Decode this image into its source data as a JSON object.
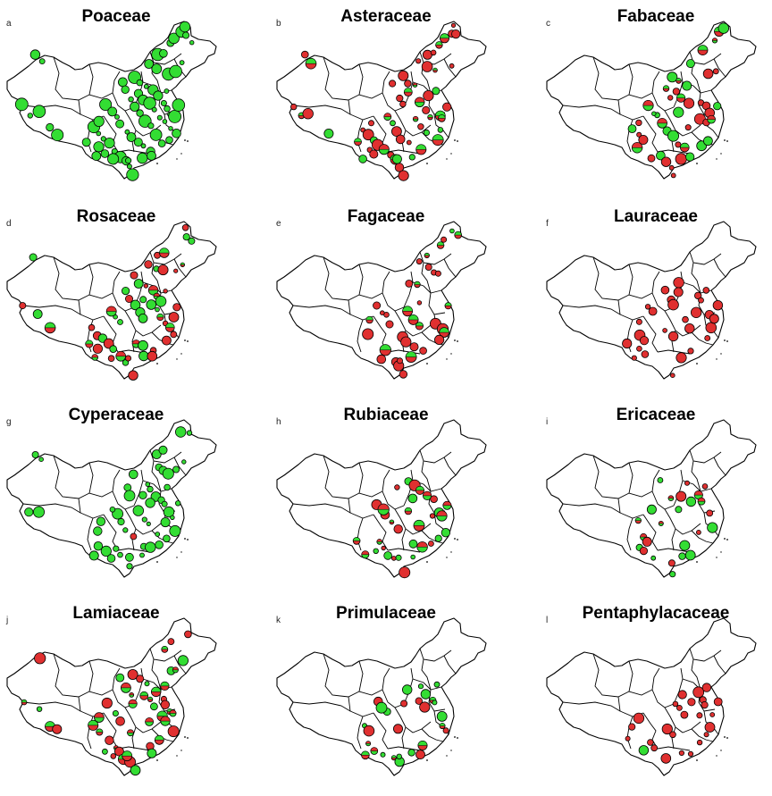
{
  "colors": {
    "green": "#33dd33",
    "red": "#e03030",
    "outline": "#000000",
    "background": "#ffffff"
  },
  "panels": [
    {
      "letter": "a",
      "title": "Poaceae",
      "dominant_color": "green",
      "red_share": 0.0,
      "density": 1.0
    },
    {
      "letter": "b",
      "title": "Asteraceae",
      "dominant_color": "red",
      "red_share": 0.75,
      "density": 0.8
    },
    {
      "letter": "c",
      "title": "Fabaceae",
      "dominant_color": "red",
      "red_share": 0.6,
      "density": 0.7
    },
    {
      "letter": "d",
      "title": "Rosaceae",
      "dominant_color": "red",
      "red_share": 0.6,
      "density": 0.75
    },
    {
      "letter": "e",
      "title": "Fagaceae",
      "dominant_color": "red",
      "red_share": 0.9,
      "density": 0.6
    },
    {
      "letter": "f",
      "title": "Lauraceae",
      "dominant_color": "red",
      "red_share": 1.0,
      "density": 0.55
    },
    {
      "letter": "g",
      "title": "Cyperaceae",
      "dominant_color": "green",
      "red_share": 0.05,
      "density": 0.75
    },
    {
      "letter": "h",
      "title": "Rubiaceae",
      "dominant_color": "green",
      "red_share": 0.4,
      "density": 0.55
    },
    {
      "letter": "i",
      "title": "Ericaceae",
      "dominant_color": "green",
      "red_share": 0.45,
      "density": 0.5
    },
    {
      "letter": "j",
      "title": "Lamiaceae",
      "dominant_color": "red",
      "red_share": 0.55,
      "density": 0.65
    },
    {
      "letter": "k",
      "title": "Primulaceae",
      "dominant_color": "green",
      "red_share": 0.35,
      "density": 0.55
    },
    {
      "letter": "l",
      "title": "Pentaphylacaceae",
      "dominant_color": "red",
      "red_share": 0.95,
      "density": 0.4
    }
  ]
}
